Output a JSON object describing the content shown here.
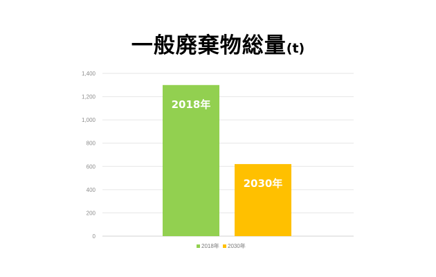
{
  "chart_data": {
    "type": "bar",
    "title": "一般廃棄物総量",
    "title_unit": "(t)",
    "categories": [
      "2018年",
      "2030年"
    ],
    "values": [
      1300,
      620
    ],
    "colors": [
      "#92d050",
      "#ffc000"
    ],
    "data_labels": [
      "2018年",
      "2030年"
    ],
    "ylim": [
      0,
      1400
    ],
    "yticks": [
      0,
      200,
      400,
      600,
      800,
      1000,
      1200,
      1400
    ],
    "ytick_labels": [
      "0",
      "200",
      "400",
      "600",
      "800",
      "1,000",
      "1,200",
      "1,400"
    ],
    "grid": true,
    "legend": {
      "position": "bottom",
      "entries": [
        "2018年",
        "2030年"
      ]
    }
  }
}
